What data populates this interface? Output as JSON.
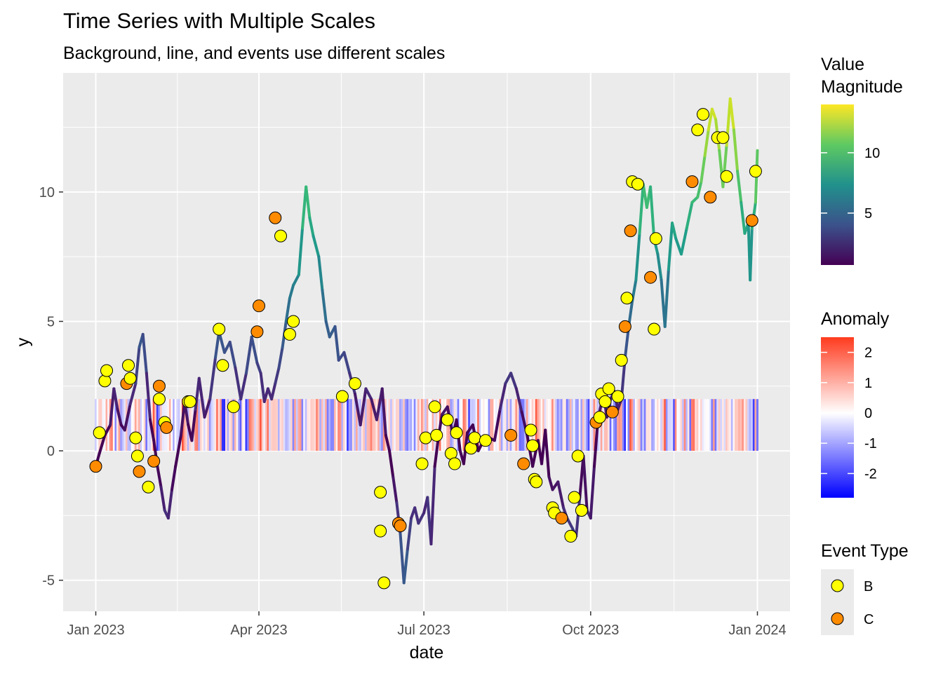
{
  "chart_data": {
    "type": "line",
    "title": "Time Series with Multiple Scales",
    "subtitle": "Background, line, and events use different scales",
    "xlabel": "date",
    "ylabel": "y",
    "xlim": [
      "2022-12-14",
      "2024-01-19"
    ],
    "ylim": [
      -6.2,
      14.6
    ],
    "x_ticks": [
      {
        "date": "2023-01-01",
        "label": "Jan 2023"
      },
      {
        "date": "2023-04-01",
        "label": "Apr 2023"
      },
      {
        "date": "2023-07-01",
        "label": "Jul 2023"
      },
      {
        "date": "2023-10-01",
        "label": "Oct 2023"
      },
      {
        "date": "2024-01-01",
        "label": "Jan 2024"
      }
    ],
    "y_ticks": [
      -5,
      0,
      5,
      10
    ],
    "grid": true,
    "line": {
      "color_scale": "viridis",
      "points": [
        [
          "2023-01-01",
          -0.6
        ],
        [
          "2023-01-03",
          -0.1
        ],
        [
          "2023-01-06",
          0.6
        ],
        [
          "2023-01-09",
          1.0
        ],
        [
          "2023-01-11",
          2.4
        ],
        [
          "2023-01-13",
          1.6
        ],
        [
          "2023-01-15",
          1.0
        ],
        [
          "2023-01-17",
          0.8
        ],
        [
          "2023-01-20",
          1.8
        ],
        [
          "2023-01-23",
          2.6
        ],
        [
          "2023-01-25",
          4.0
        ],
        [
          "2023-01-27",
          4.5
        ],
        [
          "2023-01-29",
          3.0
        ],
        [
          "2023-01-31",
          1.2
        ],
        [
          "2023-02-02",
          0.4
        ],
        [
          "2023-02-04",
          -0.6
        ],
        [
          "2023-02-06",
          -1.4
        ],
        [
          "2023-02-08",
          -2.3
        ],
        [
          "2023-02-10",
          -2.6
        ],
        [
          "2023-02-12",
          -1.5
        ],
        [
          "2023-02-14",
          -0.6
        ],
        [
          "2023-02-17",
          0.6
        ],
        [
          "2023-02-19",
          1.9
        ],
        [
          "2023-02-21",
          1.0
        ],
        [
          "2023-02-23",
          0.4
        ],
        [
          "2023-02-25",
          1.6
        ],
        [
          "2023-02-27",
          2.8
        ],
        [
          "2023-03-02",
          1.3
        ],
        [
          "2023-03-05",
          2.0
        ],
        [
          "2023-03-08",
          3.6
        ],
        [
          "2023-03-10",
          4.6
        ],
        [
          "2023-03-13",
          3.8
        ],
        [
          "2023-03-16",
          4.2
        ],
        [
          "2023-03-19",
          3.2
        ],
        [
          "2023-03-22",
          2.0
        ],
        [
          "2023-03-25",
          3.0
        ],
        [
          "2023-03-28",
          4.4
        ],
        [
          "2023-03-31",
          3.4
        ],
        [
          "2023-04-02",
          3.0
        ],
        [
          "2023-04-04",
          1.9
        ],
        [
          "2023-04-06",
          2.4
        ],
        [
          "2023-04-08",
          2.0
        ],
        [
          "2023-04-10",
          2.6
        ],
        [
          "2023-04-12",
          3.2
        ],
        [
          "2023-04-14",
          4.0
        ],
        [
          "2023-04-16",
          5.0
        ],
        [
          "2023-04-18",
          5.9
        ],
        [
          "2023-04-20",
          6.4
        ],
        [
          "2023-04-23",
          6.8
        ],
        [
          "2023-04-25",
          8.6
        ],
        [
          "2023-04-27",
          10.2
        ],
        [
          "2023-04-29",
          9.0
        ],
        [
          "2023-05-01",
          8.3
        ],
        [
          "2023-05-04",
          7.5
        ],
        [
          "2023-05-06",
          6.2
        ],
        [
          "2023-05-08",
          5.0
        ],
        [
          "2023-05-10",
          4.4
        ],
        [
          "2023-05-13",
          4.8
        ],
        [
          "2023-05-15",
          3.5
        ],
        [
          "2023-05-18",
          3.8
        ],
        [
          "2023-05-21",
          3.0
        ],
        [
          "2023-05-24",
          2.2
        ],
        [
          "2023-05-27",
          1.0
        ],
        [
          "2023-05-30",
          2.4
        ],
        [
          "2023-06-02",
          2.0
        ],
        [
          "2023-06-05",
          1.2
        ],
        [
          "2023-06-08",
          2.4
        ],
        [
          "2023-06-10",
          0.6
        ],
        [
          "2023-06-12",
          0.0
        ],
        [
          "2023-06-14",
          -1.0
        ],
        [
          "2023-06-16",
          -2.0
        ],
        [
          "2023-06-18",
          -3.2
        ],
        [
          "2023-06-20",
          -5.1
        ],
        [
          "2023-06-22",
          -3.8
        ],
        [
          "2023-06-24",
          -2.6
        ],
        [
          "2023-06-26",
          -2.2
        ],
        [
          "2023-06-28",
          -2.8
        ],
        [
          "2023-07-01",
          -2.4
        ],
        [
          "2023-07-03",
          -1.8
        ],
        [
          "2023-07-05",
          -3.6
        ],
        [
          "2023-07-07",
          -0.6
        ],
        [
          "2023-07-09",
          0.5
        ],
        [
          "2023-07-11",
          1.4
        ],
        [
          "2023-07-14",
          1.7
        ],
        [
          "2023-07-17",
          0.6
        ],
        [
          "2023-07-19",
          1.2
        ],
        [
          "2023-07-21",
          0.0
        ],
        [
          "2023-07-23",
          -0.5
        ],
        [
          "2023-07-25",
          0.7
        ],
        [
          "2023-07-28",
          1.0
        ],
        [
          "2023-07-31",
          0.0
        ],
        [
          "2023-08-03",
          0.4
        ],
        [
          "2023-08-06",
          0.5
        ],
        [
          "2023-08-09",
          0.4
        ],
        [
          "2023-08-12",
          1.6
        ],
        [
          "2023-08-15",
          2.6
        ],
        [
          "2023-08-18",
          3.0
        ],
        [
          "2023-08-21",
          2.4
        ],
        [
          "2023-08-24",
          1.5
        ],
        [
          "2023-08-27",
          0.6
        ],
        [
          "2023-08-30",
          -0.6
        ],
        [
          "2023-09-02",
          0.4
        ],
        [
          "2023-09-04",
          -0.5
        ],
        [
          "2023-09-06",
          0.8
        ],
        [
          "2023-09-08",
          -1.0
        ],
        [
          "2023-09-10",
          -1.5
        ],
        [
          "2023-09-13",
          -1.2
        ],
        [
          "2023-09-16",
          -2.2
        ],
        [
          "2023-09-18",
          -2.6
        ],
        [
          "2023-09-21",
          -3.0
        ],
        [
          "2023-09-23",
          -3.3
        ],
        [
          "2023-09-25",
          -1.8
        ],
        [
          "2023-09-27",
          -0.2
        ],
        [
          "2023-09-29",
          -2.3
        ],
        [
          "2023-10-01",
          -2.6
        ],
        [
          "2023-10-03",
          -0.6
        ],
        [
          "2023-10-05",
          1.2
        ],
        [
          "2023-10-08",
          2.2
        ],
        [
          "2023-10-10",
          1.3
        ],
        [
          "2023-10-12",
          2.0
        ],
        [
          "2023-10-14",
          2.3
        ],
        [
          "2023-10-16",
          1.6
        ],
        [
          "2023-10-18",
          2.0
        ],
        [
          "2023-10-20",
          3.6
        ],
        [
          "2023-10-22",
          4.8
        ],
        [
          "2023-10-24",
          5.8
        ],
        [
          "2023-10-26",
          6.6
        ],
        [
          "2023-10-28",
          8.4
        ],
        [
          "2023-10-30",
          10.3
        ],
        [
          "2023-11-01",
          9.4
        ],
        [
          "2023-11-03",
          10.2
        ],
        [
          "2023-11-05",
          8.2
        ],
        [
          "2023-11-07",
          7.6
        ],
        [
          "2023-11-09",
          6.6
        ],
        [
          "2023-11-11",
          4.8
        ],
        [
          "2023-11-13",
          7.0
        ],
        [
          "2023-11-15",
          8.8
        ],
        [
          "2023-11-17",
          8.2
        ],
        [
          "2023-11-20",
          7.6
        ],
        [
          "2023-11-23",
          8.6
        ],
        [
          "2023-11-26",
          9.6
        ],
        [
          "2023-11-29",
          9.8
        ],
        [
          "2023-12-01",
          10.4
        ],
        [
          "2023-12-03",
          11.4
        ],
        [
          "2023-12-05",
          12.4
        ],
        [
          "2023-12-07",
          13.2
        ],
        [
          "2023-12-09",
          12.8
        ],
        [
          "2023-12-11",
          11.6
        ],
        [
          "2023-12-13",
          10.2
        ],
        [
          "2023-12-15",
          11.8
        ],
        [
          "2023-12-17",
          13.6
        ],
        [
          "2023-12-19",
          12.4
        ],
        [
          "2023-12-21",
          10.8
        ],
        [
          "2023-12-23",
          9.6
        ],
        [
          "2023-12-25",
          8.4
        ],
        [
          "2023-12-27",
          8.8
        ],
        [
          "2023-12-28",
          6.6
        ],
        [
          "2023-12-29",
          8.6
        ],
        [
          "2023-12-31",
          9.6
        ],
        [
          "2024-01-01",
          11.6
        ]
      ]
    },
    "events": [
      {
        "date": "2023-01-01",
        "y": -0.6,
        "type": "C"
      },
      {
        "date": "2023-01-03",
        "y": 0.7,
        "type": "B"
      },
      {
        "date": "2023-01-06",
        "y": 2.7,
        "type": "B"
      },
      {
        "date": "2023-01-07",
        "y": 3.1,
        "type": "B"
      },
      {
        "date": "2023-01-18",
        "y": 2.6,
        "type": "C"
      },
      {
        "date": "2023-01-19",
        "y": 3.3,
        "type": "B"
      },
      {
        "date": "2023-01-20",
        "y": 2.8,
        "type": "B"
      },
      {
        "date": "2023-01-23",
        "y": 0.5,
        "type": "B"
      },
      {
        "date": "2023-01-24",
        "y": -0.2,
        "type": "B"
      },
      {
        "date": "2023-01-25",
        "y": -0.8,
        "type": "C"
      },
      {
        "date": "2023-01-30",
        "y": -1.4,
        "type": "B"
      },
      {
        "date": "2023-02-02",
        "y": -0.4,
        "type": "C"
      },
      {
        "date": "2023-02-05",
        "y": 2.0,
        "type": "B"
      },
      {
        "date": "2023-02-05",
        "y": 2.5,
        "type": "C"
      },
      {
        "date": "2023-02-08",
        "y": 1.1,
        "type": "B"
      },
      {
        "date": "2023-02-09",
        "y": 0.9,
        "type": "C"
      },
      {
        "date": "2023-02-21",
        "y": 1.9,
        "type": "B"
      },
      {
        "date": "2023-02-22",
        "y": 1.9,
        "type": "B"
      },
      {
        "date": "2023-03-10",
        "y": 4.7,
        "type": "B"
      },
      {
        "date": "2023-03-12",
        "y": 3.3,
        "type": "B"
      },
      {
        "date": "2023-03-18",
        "y": 1.7,
        "type": "B"
      },
      {
        "date": "2023-03-31",
        "y": 4.6,
        "type": "C"
      },
      {
        "date": "2023-04-01",
        "y": 5.6,
        "type": "C"
      },
      {
        "date": "2023-04-10",
        "y": 9.0,
        "type": "C"
      },
      {
        "date": "2023-04-13",
        "y": 8.3,
        "type": "B"
      },
      {
        "date": "2023-04-18",
        "y": 4.5,
        "type": "B"
      },
      {
        "date": "2023-04-20",
        "y": 5.0,
        "type": "B"
      },
      {
        "date": "2023-05-17",
        "y": 2.1,
        "type": "B"
      },
      {
        "date": "2023-05-24",
        "y": 2.6,
        "type": "B"
      },
      {
        "date": "2023-06-07",
        "y": -1.6,
        "type": "B"
      },
      {
        "date": "2023-06-07",
        "y": -3.1,
        "type": "B"
      },
      {
        "date": "2023-06-09",
        "y": -5.1,
        "type": "B"
      },
      {
        "date": "2023-06-17",
        "y": -2.8,
        "type": "C"
      },
      {
        "date": "2023-06-18",
        "y": -2.9,
        "type": "C"
      },
      {
        "date": "2023-06-30",
        "y": -0.5,
        "type": "B"
      },
      {
        "date": "2023-07-02",
        "y": 0.5,
        "type": "B"
      },
      {
        "date": "2023-07-07",
        "y": 1.7,
        "type": "B"
      },
      {
        "date": "2023-07-08",
        "y": 0.6,
        "type": "B"
      },
      {
        "date": "2023-07-14",
        "y": 1.2,
        "type": "B"
      },
      {
        "date": "2023-07-16",
        "y": -0.1,
        "type": "B"
      },
      {
        "date": "2023-07-18",
        "y": -0.5,
        "type": "B"
      },
      {
        "date": "2023-07-19",
        "y": 0.7,
        "type": "B"
      },
      {
        "date": "2023-07-27",
        "y": 0.1,
        "type": "B"
      },
      {
        "date": "2023-07-29",
        "y": 0.5,
        "type": "B"
      },
      {
        "date": "2023-08-04",
        "y": 0.4,
        "type": "B"
      },
      {
        "date": "2023-08-18",
        "y": 0.6,
        "type": "C"
      },
      {
        "date": "2023-08-25",
        "y": -0.5,
        "type": "C"
      },
      {
        "date": "2023-08-29",
        "y": 0.8,
        "type": "B"
      },
      {
        "date": "2023-08-30",
        "y": 0.2,
        "type": "B"
      },
      {
        "date": "2023-08-31",
        "y": -1.1,
        "type": "B"
      },
      {
        "date": "2023-09-01",
        "y": -1.2,
        "type": "B"
      },
      {
        "date": "2023-09-10",
        "y": -2.2,
        "type": "B"
      },
      {
        "date": "2023-09-11",
        "y": -2.4,
        "type": "B"
      },
      {
        "date": "2023-09-15",
        "y": -2.6,
        "type": "C"
      },
      {
        "date": "2023-09-20",
        "y": -3.3,
        "type": "B"
      },
      {
        "date": "2023-09-22",
        "y": -1.8,
        "type": "B"
      },
      {
        "date": "2023-09-24",
        "y": -0.2,
        "type": "B"
      },
      {
        "date": "2023-09-26",
        "y": -2.3,
        "type": "B"
      },
      {
        "date": "2023-10-04",
        "y": 1.1,
        "type": "C"
      },
      {
        "date": "2023-10-06",
        "y": 1.3,
        "type": "B"
      },
      {
        "date": "2023-10-07",
        "y": 2.2,
        "type": "B"
      },
      {
        "date": "2023-10-09",
        "y": 1.9,
        "type": "B"
      },
      {
        "date": "2023-10-11",
        "y": 2.4,
        "type": "B"
      },
      {
        "date": "2023-10-13",
        "y": 1.5,
        "type": "C"
      },
      {
        "date": "2023-10-16",
        "y": 2.1,
        "type": "B"
      },
      {
        "date": "2023-10-18",
        "y": 3.5,
        "type": "B"
      },
      {
        "date": "2023-10-20",
        "y": 4.8,
        "type": "C"
      },
      {
        "date": "2023-10-21",
        "y": 5.9,
        "type": "B"
      },
      {
        "date": "2023-10-23",
        "y": 8.5,
        "type": "C"
      },
      {
        "date": "2023-10-24",
        "y": 10.4,
        "type": "B"
      },
      {
        "date": "2023-10-27",
        "y": 10.3,
        "type": "B"
      },
      {
        "date": "2023-11-03",
        "y": 6.7,
        "type": "C"
      },
      {
        "date": "2023-11-05",
        "y": 4.7,
        "type": "B"
      },
      {
        "date": "2023-11-06",
        "y": 8.2,
        "type": "B"
      },
      {
        "date": "2023-11-26",
        "y": 10.4,
        "type": "C"
      },
      {
        "date": "2023-11-29",
        "y": 12.4,
        "type": "B"
      },
      {
        "date": "2023-12-02",
        "y": 13.0,
        "type": "B"
      },
      {
        "date": "2023-12-06",
        "y": 9.8,
        "type": "C"
      },
      {
        "date": "2023-12-10",
        "y": 12.1,
        "type": "B"
      },
      {
        "date": "2023-12-13",
        "y": 12.1,
        "type": "B"
      },
      {
        "date": "2023-12-15",
        "y": 10.6,
        "type": "B"
      },
      {
        "date": "2023-12-29",
        "y": 8.9,
        "type": "C"
      },
      {
        "date": "2023-12-31",
        "y": 10.8,
        "type": "B"
      }
    ],
    "background": {
      "description_scale": "anomaly",
      "from_y": 0,
      "to_y": 2,
      "range": [
        "2023-01-01",
        "2024-01-01"
      ],
      "seed": 7
    },
    "legends": [
      {
        "title_lines": [
          "Value",
          "Magnitude"
        ],
        "type": "colorbar",
        "palette": "viridis",
        "min": 0.7,
        "max": 14.0,
        "breaks": [
          5,
          10
        ]
      },
      {
        "title_lines": [
          "Anomaly"
        ],
        "type": "colorbar",
        "palette": "blue-white-red",
        "min": -2.8,
        "max": 2.5,
        "breaks": [
          2,
          1,
          0,
          -1,
          -2
        ]
      },
      {
        "title_lines": [
          "Event Type"
        ],
        "type": "points",
        "entries": [
          {
            "label": "B",
            "color": "#FFFF00"
          },
          {
            "label": "C",
            "color": "#FF8C00"
          }
        ]
      }
    ],
    "colors": {
      "panel_bg": "#EBEBEB",
      "grid_major": "#FFFFFF",
      "event_B": "#FFFF00",
      "event_C": "#FF8C00"
    }
  }
}
